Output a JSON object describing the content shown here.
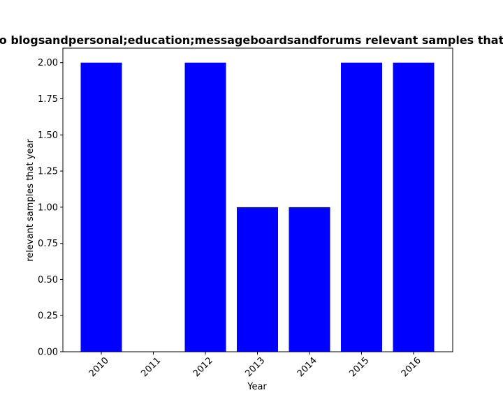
{
  "chart_data": {
    "type": "bar",
    "title": "o blogsandpersonal;education;messageboardsandforums relevant samples that",
    "xlabel": "Year",
    "ylabel": "relevant samples that year",
    "categories": [
      "2010",
      "2011",
      "2012",
      "2013",
      "2014",
      "2015",
      "2016"
    ],
    "values": [
      2,
      0,
      2,
      1,
      1,
      2,
      2
    ],
    "ylim": [
      0,
      2.1
    ],
    "yticks": [
      "0.00",
      "0.25",
      "0.50",
      "0.75",
      "1.00",
      "1.25",
      "1.50",
      "1.75",
      "2.00"
    ],
    "bar_color": "#0000ff",
    "grid": false
  }
}
